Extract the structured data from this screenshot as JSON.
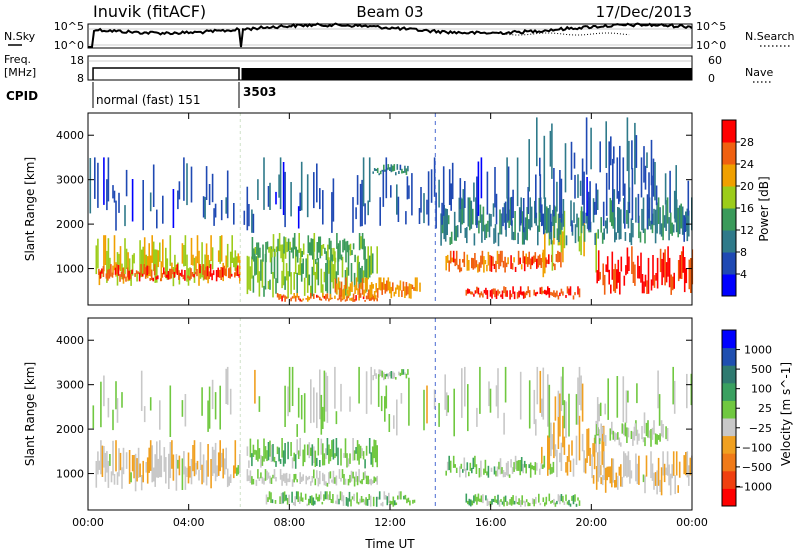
{
  "header": {
    "station": "Inuvik (fitACF)",
    "beam": "Beam 03",
    "date": "17/Dec/2013"
  },
  "noise_panel": {
    "left_label": "N.Sky",
    "left_ticks": [
      "10^5",
      "10^0"
    ],
    "right_ticks": [
      "10^5",
      "10^0"
    ],
    "right_label": "N.Search",
    "right_label_style": "dotted"
  },
  "freq_panel": {
    "left_label_top": "Freq.",
    "left_label_unit": "[MHz]",
    "left_ticks": [
      "18",
      "8"
    ],
    "right_ticks": [
      "60",
      "0"
    ],
    "right_label": "Nave",
    "right_label_style": "dotted"
  },
  "cpid": {
    "label": "CPID",
    "segments": [
      {
        "name": "normal (fast) 151",
        "start_h": 0,
        "end_h": 6
      },
      {
        "name": "3503",
        "start_h": 6,
        "end_h": 24
      }
    ]
  },
  "chart_data": [
    {
      "type": "heatmap",
      "name": "power",
      "ylabel": "Slant Range [km]",
      "ylim": [
        180,
        4500
      ],
      "yticks": [
        "1000",
        "2000",
        "3000",
        "4000"
      ],
      "xlim": [
        0,
        24
      ],
      "colorbar": {
        "label": "Power [dB]",
        "ticks": [
          "28",
          "24",
          "20",
          "16",
          "12",
          "8",
          "4"
        ],
        "range": [
          0,
          30
        ]
      },
      "colors": [
        "#0000ff",
        "#1f49b3",
        "#2f7a8a",
        "#3a9a5a",
        "#9ccc1a",
        "#f0a000",
        "#f06010",
        "#ff0000"
      ],
      "regions": [
        {
          "t": [
            0.3,
            6.0
          ],
          "r": [
            600,
            1750
          ],
          "v": 18
        },
        {
          "t": [
            0.4,
            6.0
          ],
          "r": [
            700,
            1100
          ],
          "v": 26
        },
        {
          "t": [
            6.3,
            11.5
          ],
          "r": [
            300,
            1500
          ],
          "v": 16
        },
        {
          "t": [
            6.5,
            11.0
          ],
          "r": [
            1100,
            1800
          ],
          "v": 14
        },
        {
          "t": [
            7.5,
            11.5
          ],
          "r": [
            250,
            450
          ],
          "v": 24
        },
        {
          "t": [
            9.8,
            13.2
          ],
          "r": [
            300,
            800
          ],
          "v": 22
        },
        {
          "t": [
            11.3,
            12.7
          ],
          "r": [
            3100,
            3350
          ],
          "v": 10
        },
        {
          "t": [
            14.2,
            18.8
          ],
          "r": [
            900,
            1400
          ],
          "v": 24
        },
        {
          "t": [
            15.0,
            19.5
          ],
          "r": [
            300,
            600
          ],
          "v": 26
        },
        {
          "t": [
            18.0,
            20.5
          ],
          "r": [
            800,
            2300
          ],
          "v": 18
        },
        {
          "t": [
            20.2,
            24.0
          ],
          "r": [
            400,
            1500
          ],
          "v": 27
        },
        {
          "t": [
            14.0,
            24.0
          ],
          "r": [
            1500,
            2600
          ],
          "v": 10
        },
        {
          "t": [
            0.0,
            24.0
          ],
          "r": [
            1800,
            3500
          ],
          "v": 6
        },
        {
          "t": [
            17.5,
            22.5
          ],
          "r": [
            2500,
            4400
          ],
          "v": 8
        }
      ]
    },
    {
      "type": "heatmap",
      "name": "velocity",
      "ylabel": "Slant Range [km]",
      "ylim": [
        180,
        4500
      ],
      "yticks": [
        "1000",
        "2000",
        "3000",
        "4000"
      ],
      "xlim": [
        0,
        24
      ],
      "xticks": [
        "00:00",
        "04:00",
        "08:00",
        "12:00",
        "16:00",
        "20:00",
        "00:00"
      ],
      "xlabel": "Time UT",
      "colorbar": {
        "label": "Velocity [m s^-1]",
        "ticks": [
          "1000",
          "500",
          "100",
          "25",
          "−25",
          "−100",
          "−500",
          "−1000"
        ],
        "range": [
          -1200,
          1200
        ]
      },
      "colors": [
        "#ff0000",
        "#f04010",
        "#f07a18",
        "#f0a020",
        "#c8c8c8",
        "#70c840",
        "#3aa060",
        "#2f7a70",
        "#1f4fb0",
        "#0000ff"
      ],
      "regions": [
        {
          "t": [
            0.3,
            6.0
          ],
          "r": [
            600,
            1750
          ],
          "v": -200
        },
        {
          "t": [
            6.3,
            11.5
          ],
          "r": [
            1100,
            1800
          ],
          "v": 150
        },
        {
          "t": [
            6.3,
            11.5
          ],
          "r": [
            700,
            1100
          ],
          "v": 0
        },
        {
          "t": [
            7.0,
            13.0
          ],
          "r": [
            250,
            600
          ],
          "v": 80
        },
        {
          "t": [
            11.3,
            12.7
          ],
          "r": [
            3100,
            3350
          ],
          "v": 80
        },
        {
          "t": [
            14.2,
            18.5
          ],
          "r": [
            900,
            1400
          ],
          "v": 60
        },
        {
          "t": [
            15.0,
            19.5
          ],
          "r": [
            250,
            550
          ],
          "v": 120
        },
        {
          "t": [
            18.0,
            20.5
          ],
          "r": [
            900,
            2300
          ],
          "v": -250
        },
        {
          "t": [
            20.0,
            24.0
          ],
          "r": [
            500,
            1500
          ],
          "v": -180
        },
        {
          "t": [
            20.0,
            23.0
          ],
          "r": [
            1600,
            2200
          ],
          "v": 0
        },
        {
          "t": [
            0.0,
            24.0
          ],
          "r": [
            1800,
            3400
          ],
          "v": -60
        }
      ]
    }
  ]
}
